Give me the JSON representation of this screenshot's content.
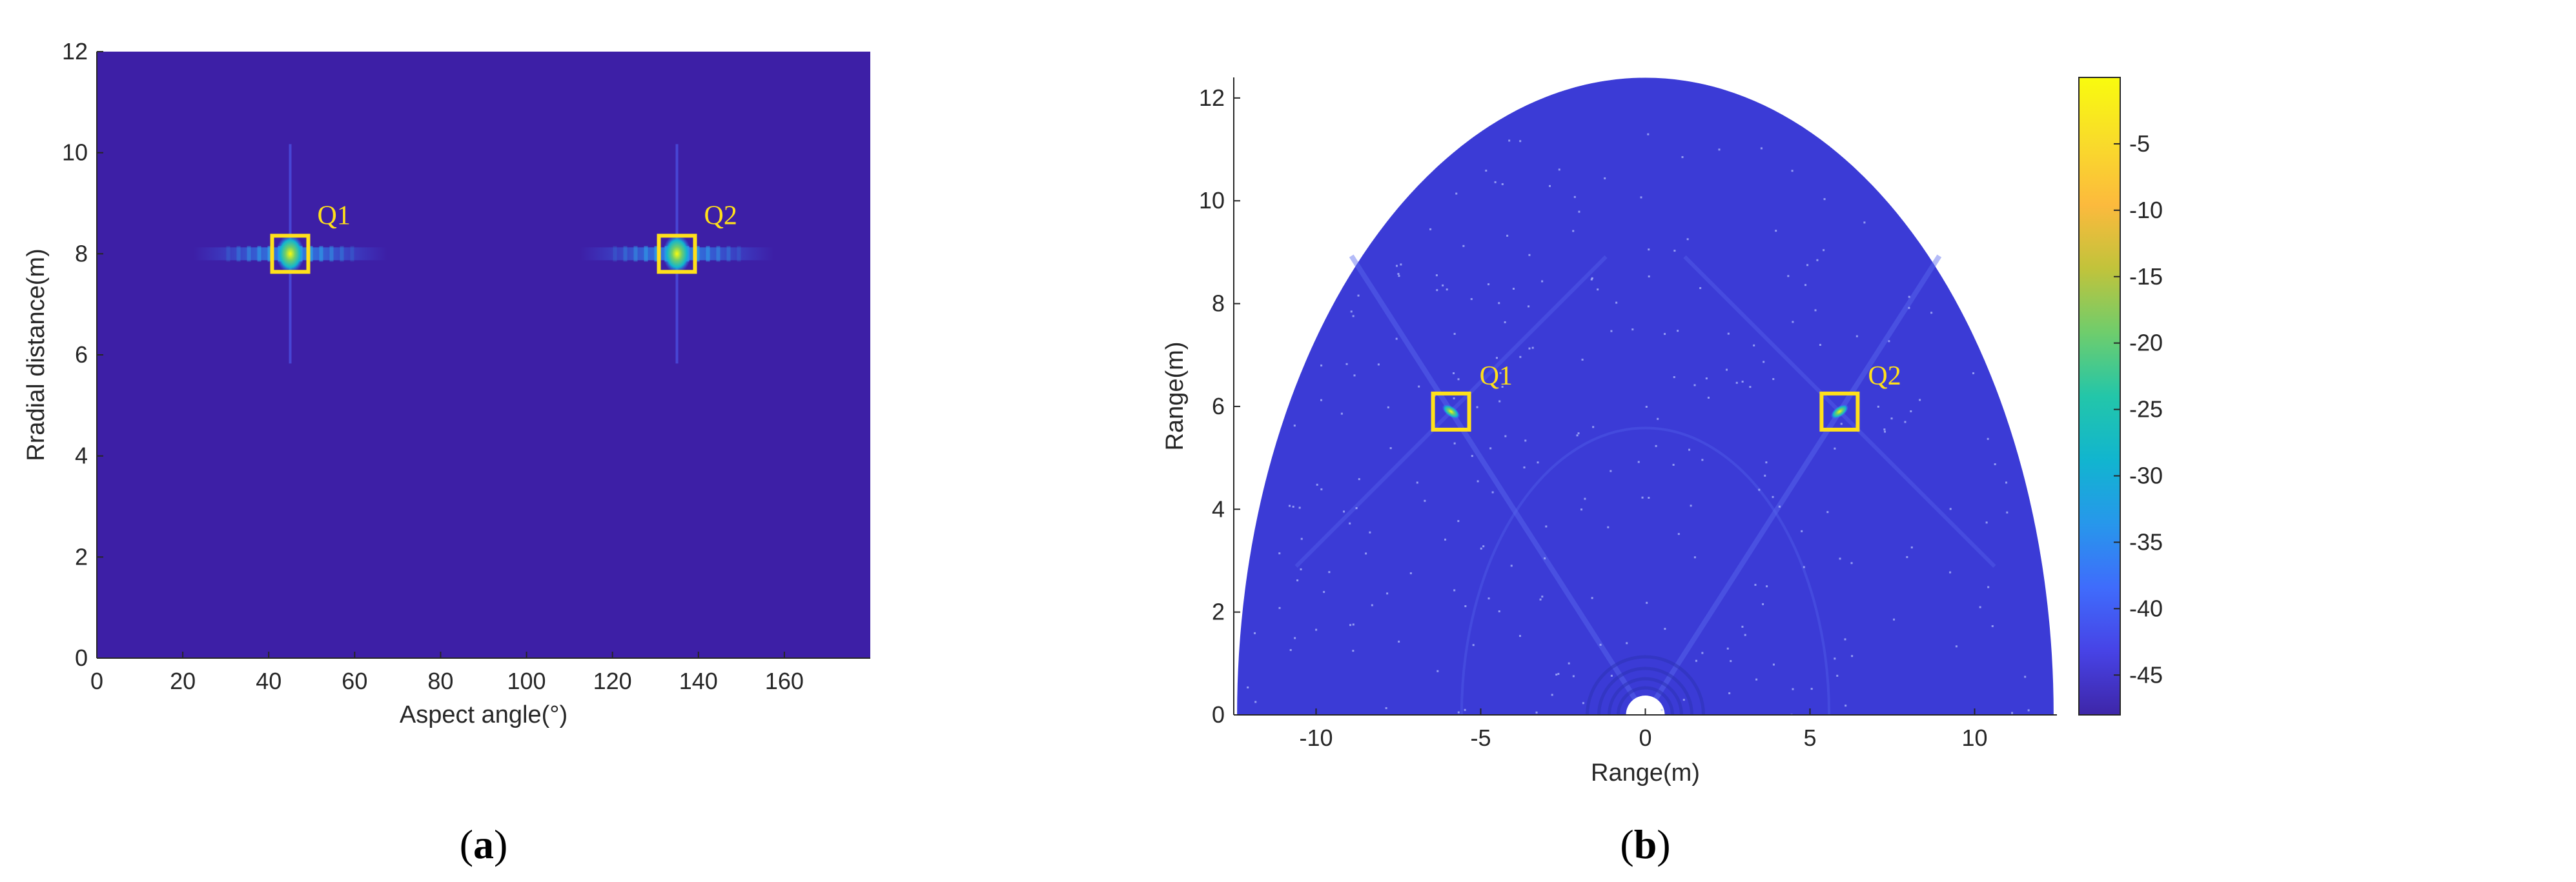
{
  "chart_data": [
    {
      "type": "heatmap",
      "panel_label": "a",
      "xlabel": "Aspect angle(°)",
      "ylabel": "Rradial distance(m)",
      "xlim": [
        0,
        180
      ],
      "ylim": [
        0,
        12
      ],
      "x_ticks": [
        0,
        20,
        40,
        60,
        80,
        100,
        120,
        140,
        160
      ],
      "y_ticks": [
        0,
        2,
        4,
        6,
        8,
        10,
        12
      ],
      "background_color": "#3d1fa6",
      "targets": [
        {
          "label": "Q1",
          "x": 45,
          "y": 8
        },
        {
          "label": "Q2",
          "x": 135,
          "y": 8
        }
      ],
      "marker_color": "#ffe01b"
    },
    {
      "type": "heatmap",
      "panel_label": "b",
      "xlabel": "Range(m)",
      "ylabel": "Range(m)",
      "xlim": [
        -12.5,
        12.5
      ],
      "ylim": [
        0,
        12.4
      ],
      "x_ticks": [
        -10,
        -5,
        0,
        5,
        10
      ],
      "y_ticks": [
        0,
        2,
        4,
        6,
        8,
        10,
        12
      ],
      "max_range": 12.4,
      "background_color": "#3b3bd6",
      "targets": [
        {
          "label": "Q1",
          "x": -5.9,
          "y": 5.9
        },
        {
          "label": "Q2",
          "x": 5.9,
          "y": 5.9
        }
      ],
      "marker_color": "#ffe01b",
      "colorbar": {
        "ticks": [
          -5,
          -10,
          -15,
          -20,
          -25,
          -30,
          -35,
          -40,
          -45
        ],
        "range": [
          -48,
          0
        ],
        "colors": [
          "#3e26a8",
          "#4743e6",
          "#3f6cfc",
          "#2797eb",
          "#11b5cf",
          "#23c6a9",
          "#6fcd6c",
          "#c1c33b",
          "#fcba3d",
          "#f9dc2a",
          "#f9fb0e"
        ]
      }
    }
  ]
}
